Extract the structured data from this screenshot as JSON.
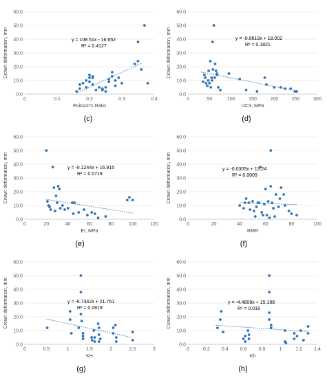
{
  "chart_data": [
    {
      "type": "scatter",
      "panel_label": "(c)",
      "xlabel": "Poisson’s Ratio",
      "ylabel": "Crown deformation, mm",
      "xlim": [
        0,
        0.4
      ],
      "ylim": [
        0,
        60
      ],
      "xticks": [
        0,
        0.1,
        0.2,
        0.3,
        0.4
      ],
      "xtick_labels": [
        "0",
        "0.1",
        "0.2",
        "0.3",
        "0.4"
      ],
      "yticks": [
        0,
        10,
        20,
        30,
        40,
        50,
        60
      ],
      "ytick_labels": [
        "0.0",
        "10.0",
        "20.0",
        "30.0",
        "40.0",
        "50.0",
        "60.0"
      ],
      "equation": "y = 108.51x - 16.652",
      "r2": "R² = 0.4127",
      "trend": [
        [
          0.16,
          0.71
        ],
        [
          0.36,
          22.41
        ]
      ],
      "points": [
        [
          0.16,
          2
        ],
        [
          0.17,
          4
        ],
        [
          0.17,
          7
        ],
        [
          0.18,
          8
        ],
        [
          0.19,
          5
        ],
        [
          0.19,
          10
        ],
        [
          0.2,
          9
        ],
        [
          0.2,
          12
        ],
        [
          0.2,
          14
        ],
        [
          0.21,
          7
        ],
        [
          0.21,
          12
        ],
        [
          0.21,
          13
        ],
        [
          0.22,
          3
        ],
        [
          0.23,
          5
        ],
        [
          0.24,
          4
        ],
        [
          0.24,
          3
        ],
        [
          0.25,
          5
        ],
        [
          0.25,
          2
        ],
        [
          0.26,
          9
        ],
        [
          0.26,
          11
        ],
        [
          0.27,
          13
        ],
        [
          0.27,
          16
        ],
        [
          0.28,
          6
        ],
        [
          0.28,
          10
        ],
        [
          0.29,
          12
        ],
        [
          0.3,
          8
        ],
        [
          0.34,
          22
        ],
        [
          0.35,
          24
        ],
        [
          0.35,
          38
        ],
        [
          0.36,
          18
        ],
        [
          0.37,
          50
        ],
        [
          0.38,
          8
        ]
      ]
    },
    {
      "type": "scatter",
      "panel_label": "(d)",
      "xlabel": "UCS, MPa",
      "ylabel": "Crown deformation, mm",
      "xlim": [
        0,
        300
      ],
      "ylim": [
        0,
        60
      ],
      "xticks": [
        0,
        50,
        100,
        150,
        200,
        250,
        300
      ],
      "xtick_labels": [
        "0",
        "50",
        "100",
        "150",
        "200",
        "250",
        "300"
      ],
      "yticks": [
        0,
        10,
        20,
        30,
        40,
        50,
        60
      ],
      "ytick_labels": [
        "0.0",
        "10.0",
        "20.0",
        "30.0",
        "40.0",
        "50.0",
        "60.0"
      ],
      "equation": "y = -0.0619x + 18.002",
      "r2": "R² = 0.1821",
      "trend": [
        [
          30,
          16.14
        ],
        [
          255,
          2.22
        ]
      ],
      "points": [
        [
          35,
          9
        ],
        [
          38,
          14
        ],
        [
          40,
          12
        ],
        [
          42,
          8
        ],
        [
          45,
          6
        ],
        [
          47,
          10
        ],
        [
          48,
          17
        ],
        [
          50,
          8
        ],
        [
          52,
          24
        ],
        [
          53,
          5
        ],
        [
          55,
          12
        ],
        [
          56,
          10
        ],
        [
          57,
          38
        ],
        [
          58,
          18
        ],
        [
          60,
          50
        ],
        [
          62,
          12
        ],
        [
          63,
          22
        ],
        [
          65,
          17
        ],
        [
          67,
          15
        ],
        [
          68,
          14
        ],
        [
          70,
          5
        ],
        [
          75,
          3
        ],
        [
          95,
          15
        ],
        [
          120,
          11
        ],
        [
          135,
          3
        ],
        [
          160,
          2
        ],
        [
          178,
          12
        ],
        [
          182,
          7
        ],
        [
          200,
          5
        ],
        [
          215,
          5
        ],
        [
          225,
          4
        ],
        [
          238,
          4
        ],
        [
          248,
          2
        ],
        [
          252,
          2
        ]
      ]
    },
    {
      "type": "scatter",
      "panel_label": "(e)",
      "xlabel": "EI, MPa",
      "ylabel": "Crown deformation, mm",
      "xlim": [
        0,
        120
      ],
      "ylim": [
        0,
        60
      ],
      "xticks": [
        0,
        20,
        40,
        60,
        80,
        100,
        120
      ],
      "xtick_labels": [
        "0",
        "20",
        "40",
        "60",
        "80",
        "100",
        "120"
      ],
      "yticks": [
        0,
        10,
        20,
        30,
        40,
        50,
        60
      ],
      "ytick_labels": [
        "0.0",
        "10.0",
        "20.0",
        "30.0",
        "40.0",
        "50.0",
        "60.0"
      ],
      "equation": "y = -0.1244x + 16.915",
      "r2": "R² = 0.0719",
      "trend": [
        [
          20,
          14.43
        ],
        [
          100,
          4.48
        ]
      ],
      "points": [
        [
          20,
          50
        ],
        [
          21,
          13
        ],
        [
          22,
          10
        ],
        [
          23,
          9
        ],
        [
          24,
          7
        ],
        [
          26,
          38
        ],
        [
          27,
          23
        ],
        [
          28,
          6
        ],
        [
          29,
          17
        ],
        [
          30,
          12
        ],
        [
          31,
          24
        ],
        [
          32,
          22
        ],
        [
          33,
          8
        ],
        [
          35,
          10
        ],
        [
          37,
          7
        ],
        [
          40,
          8
        ],
        [
          44,
          12
        ],
        [
          45,
          4
        ],
        [
          46,
          12
        ],
        [
          50,
          5
        ],
        [
          55,
          7
        ],
        [
          58,
          3
        ],
        [
          62,
          5
        ],
        [
          65,
          4
        ],
        [
          68,
          1
        ],
        [
          75,
          2
        ],
        [
          95,
          14
        ],
        [
          97,
          16
        ],
        [
          100,
          14
        ]
      ]
    },
    {
      "type": "scatter",
      "panel_label": "(f)",
      "xlabel": "RMR",
      "ylabel": "Crown deformation, mm",
      "xlim": [
        0,
        100
      ],
      "ylim": [
        0,
        60
      ],
      "xticks": [
        0,
        20,
        40,
        60,
        80,
        100
      ],
      "xtick_labels": [
        "0",
        "20",
        "40",
        "60",
        "80",
        "100"
      ],
      "yticks": [
        0,
        10,
        20,
        30,
        40,
        50,
        60
      ],
      "ytick_labels": [
        "0.0",
        "10.0",
        "20.0",
        "30.0",
        "40.0",
        "50.0",
        "60.0"
      ],
      "equation": "y = -0.0305x + 13.24",
      "r2": "R² = 0.0009",
      "trend": [
        [
          40,
          12.02
        ],
        [
          84,
          10.68
        ]
      ],
      "points": [
        [
          40,
          10
        ],
        [
          43,
          8
        ],
        [
          44,
          12
        ],
        [
          45,
          15
        ],
        [
          47,
          12
        ],
        [
          48,
          7
        ],
        [
          50,
          13
        ],
        [
          51,
          6
        ],
        [
          52,
          2
        ],
        [
          53,
          9
        ],
        [
          54,
          12
        ],
        [
          55,
          12
        ],
        [
          56,
          38
        ],
        [
          57,
          5
        ],
        [
          58,
          3
        ],
        [
          59,
          11
        ],
        [
          60,
          22
        ],
        [
          61,
          3
        ],
        [
          62,
          13
        ],
        [
          63,
          1
        ],
        [
          64,
          50
        ],
        [
          64,
          24
        ],
        [
          65,
          12
        ],
        [
          66,
          8
        ],
        [
          67,
          2
        ],
        [
          68,
          18
        ],
        [
          70,
          9
        ],
        [
          71,
          15
        ],
        [
          72,
          23
        ],
        [
          74,
          18
        ],
        [
          75,
          10
        ],
        [
          78,
          6
        ],
        [
          80,
          4
        ],
        [
          84,
          3
        ]
      ]
    },
    {
      "type": "scatter",
      "panel_label": "(g)",
      "xlabel": "KH",
      "ylabel": "Crown deformation, mm",
      "xlim": [
        0,
        3
      ],
      "ylim": [
        0,
        60
      ],
      "xticks": [
        0,
        0.5,
        1,
        1.5,
        2,
        2.5,
        3
      ],
      "xtick_labels": [
        "0",
        "0.5",
        "1",
        "1.5",
        "2",
        "2.5",
        "3"
      ],
      "yticks": [
        0,
        10,
        20,
        30,
        40,
        50,
        60
      ],
      "ytick_labels": [
        "0.0",
        "10.0",
        "20.0",
        "30.0",
        "40.0",
        "50.0",
        "60.0"
      ],
      "equation": "y = -6.7342x + 21.751",
      "r2": "R² = 0.0819",
      "trend": [
        [
          0.5,
          18.38
        ],
        [
          2.5,
          4.92
        ]
      ],
      "points": [
        [
          0.52,
          12
        ],
        [
          1.05,
          24
        ],
        [
          1.05,
          18
        ],
        [
          1.08,
          8
        ],
        [
          1.25,
          12
        ],
        [
          1.3,
          50
        ],
        [
          1.3,
          38
        ],
        [
          1.3,
          22
        ],
        [
          1.32,
          17
        ],
        [
          1.35,
          6
        ],
        [
          1.35,
          8
        ],
        [
          1.35,
          4
        ],
        [
          1.55,
          5
        ],
        [
          1.56,
          3
        ],
        [
          1.6,
          10
        ],
        [
          1.62,
          2
        ],
        [
          1.62,
          5
        ],
        [
          1.7,
          15
        ],
        [
          1.72,
          12
        ],
        [
          1.72,
          7
        ],
        [
          1.72,
          2
        ],
        [
          1.75,
          4
        ],
        [
          2.05,
          12
        ],
        [
          2.05,
          8
        ],
        [
          2.1,
          14
        ],
        [
          2.12,
          5
        ],
        [
          2.12,
          2
        ],
        [
          2.5,
          9
        ],
        [
          2.5,
          3
        ]
      ]
    },
    {
      "type": "scatter",
      "panel_label": "(h)",
      "xlabel": "Kh",
      "ylabel": "Crown deformation, mm",
      "xlim": [
        0,
        1.4
      ],
      "ylim": [
        0,
        60
      ],
      "xticks": [
        0,
        0.2,
        0.4,
        0.6,
        0.8,
        1,
        1.2,
        1.4
      ],
      "xtick_labels": [
        "0",
        "0.2",
        "0.4",
        "0.6",
        "0.8",
        "1",
        "1.2",
        "1.4"
      ],
      "yticks": [
        0,
        10,
        20,
        30,
        40,
        50,
        60
      ],
      "ytick_labels": [
        "0.0",
        "10.0",
        "20.0",
        "30.0",
        "40.0",
        "50.0",
        "60.0"
      ],
      "equation": "y = -4.4808x + 15.188",
      "r2": "R² = 0.018",
      "trend": [
        [
          0.3,
          13.84
        ],
        [
          1.3,
          9.36
        ]
      ],
      "points": [
        [
          0.32,
          12
        ],
        [
          0.35,
          18
        ],
        [
          0.36,
          24
        ],
        [
          0.38,
          9
        ],
        [
          0.6,
          4
        ],
        [
          0.62,
          2
        ],
        [
          0.62,
          6
        ],
        [
          0.65,
          10
        ],
        [
          0.66,
          7
        ],
        [
          0.66,
          4
        ],
        [
          0.88,
          50
        ],
        [
          0.88,
          38
        ],
        [
          0.88,
          23
        ],
        [
          0.88,
          18
        ],
        [
          0.9,
          14
        ],
        [
          0.9,
          12
        ],
        [
          1.05,
          10
        ],
        [
          1.05,
          2
        ],
        [
          1.06,
          1
        ],
        [
          1.15,
          8
        ],
        [
          1.15,
          4
        ],
        [
          1.18,
          6
        ],
        [
          1.22,
          10
        ],
        [
          1.25,
          3
        ],
        [
          1.3,
          13
        ],
        [
          1.3,
          8
        ]
      ]
    }
  ]
}
